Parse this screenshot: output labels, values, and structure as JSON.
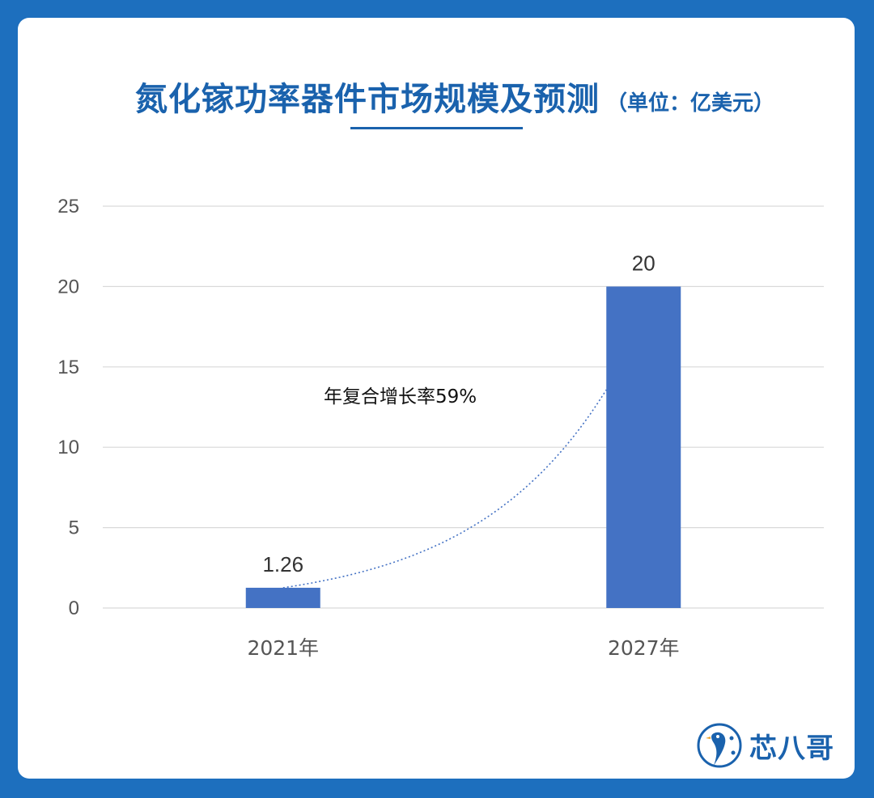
{
  "title": "氮化镓功率器件市场规模及预测",
  "title_unit": "（单位：亿美元）",
  "logo_text": "芯八哥",
  "colors": {
    "background": "#1d6fbe",
    "title": "#1a62ad",
    "bar": "#4472c4",
    "trendline": "#4472c4",
    "grid": "#d9d9d9"
  },
  "chart_data": {
    "type": "bar",
    "categories": [
      "2021年",
      "2027年"
    ],
    "values": [
      1.26,
      20
    ],
    "data_labels": [
      "1.26",
      "20"
    ],
    "ylim": [
      0,
      25
    ],
    "yticks": [
      0,
      5,
      10,
      15,
      20,
      25
    ],
    "grid": true,
    "trendline": "exponential",
    "annotation": "年复合增长率59%"
  }
}
